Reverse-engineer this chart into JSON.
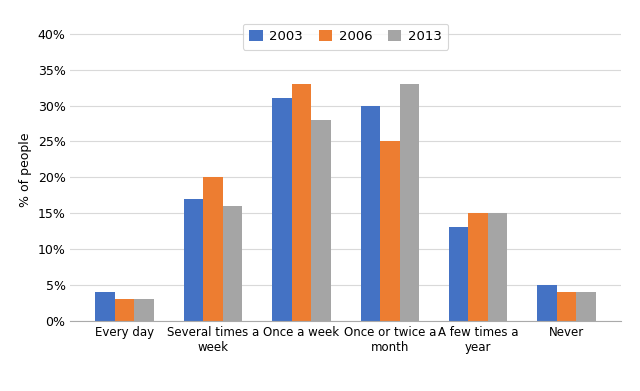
{
  "categories": [
    "Every day",
    "Several times a\nweek",
    "Once a week",
    "Once or twice a\nmonth",
    "A few times a\nyear",
    "Never"
  ],
  "series": {
    "2003": [
      4,
      17,
      31,
      30,
      13,
      5
    ],
    "2006": [
      3,
      20,
      33,
      25,
      15,
      4
    ],
    "2013": [
      3,
      16,
      28,
      33,
      15,
      4
    ]
  },
  "colors": {
    "2003": "#4472C4",
    "2006": "#ED7D31",
    "2013": "#A5A5A5"
  },
  "ylabel": "% of people",
  "ylim": [
    0,
    42
  ],
  "yticks": [
    0,
    5,
    10,
    15,
    20,
    25,
    30,
    35,
    40
  ],
  "legend_labels": [
    "2003",
    "2006",
    "2013"
  ],
  "bar_width": 0.22,
  "background_color": "#FFFFFF",
  "grid_color": "#D9D9D9"
}
